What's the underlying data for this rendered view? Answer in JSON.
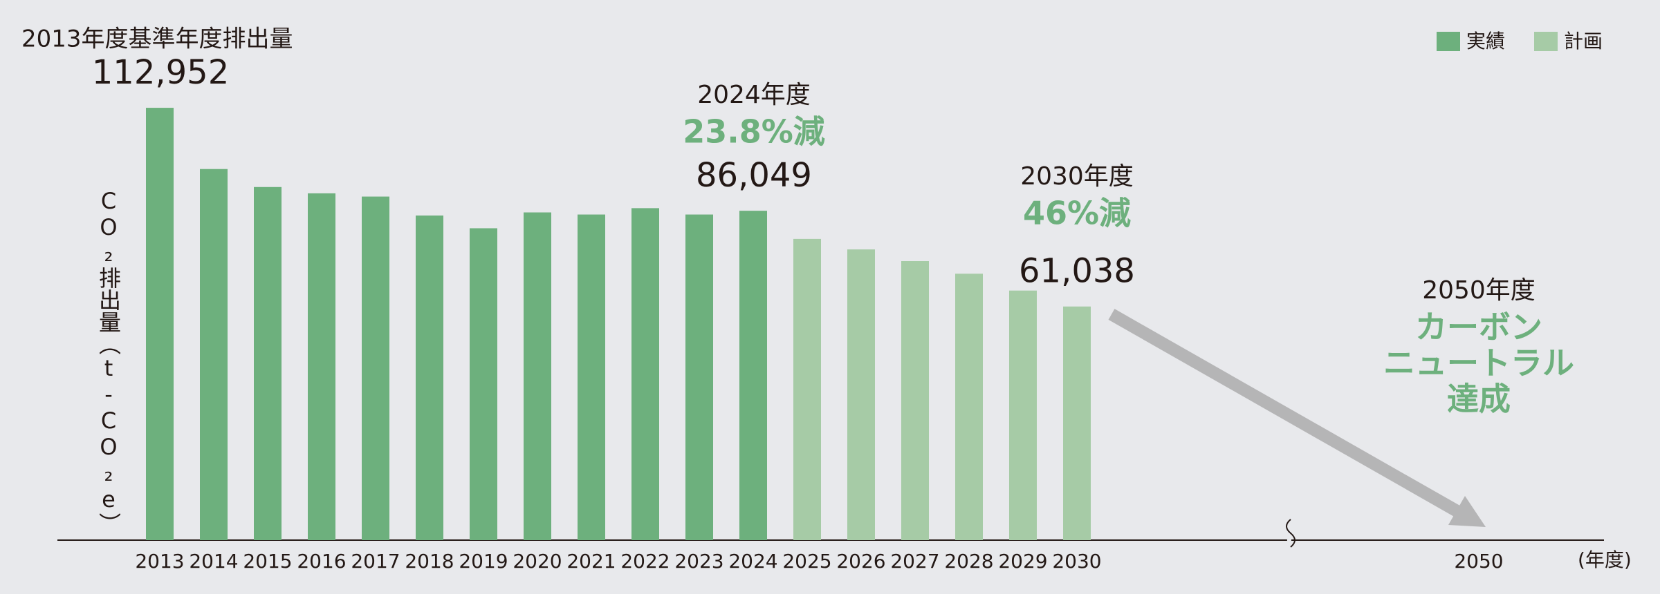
{
  "chart_data": {
    "type": "bar",
    "title": "2013年度基準年度排出量",
    "y_label": "CO₂排出量（t-CO₂e）",
    "x_label": "(年度)",
    "categories": [
      "2013",
      "2014",
      "2015",
      "2016",
      "2017",
      "2018",
      "2019",
      "2020",
      "2021",
      "2022",
      "2023",
      "2024",
      "2025",
      "2026",
      "2027",
      "2028",
      "2029",
      "2030",
      "2050"
    ],
    "series": [
      {
        "name": "実績",
        "color": "#6db07d",
        "values": [
          112952,
          96950,
          92250,
          90600,
          89760,
          84800,
          81480,
          85620,
          85070,
          86730,
          85070,
          86049,
          null,
          null,
          null,
          null,
          null,
          null,
          null
        ],
        "value_labels": [
          "112,952",
          null,
          null,
          null,
          null,
          null,
          null,
          null,
          null,
          null,
          null,
          "86,049",
          null,
          null,
          null,
          null,
          null,
          null,
          null
        ]
      },
      {
        "name": "計画",
        "color": "#a6cba6",
        "values": [
          null,
          null,
          null,
          null,
          null,
          null,
          null,
          null,
          null,
          null,
          null,
          null,
          78700,
          75950,
          72900,
          69600,
          65200,
          61038,
          null
        ],
        "value_labels": [
          null,
          null,
          null,
          null,
          null,
          null,
          null,
          null,
          null,
          null,
          null,
          null,
          null,
          null,
          null,
          null,
          null,
          "61,038",
          null
        ]
      }
    ],
    "ylim": [
      0,
      120000
    ],
    "legend": "top-right",
    "annotations": [
      [
        "2024年度",
        "23.8%減"
      ],
      [
        "2030年度",
        "46%減"
      ],
      [
        "2050年度",
        "カーボン",
        "ニュートラル",
        "達成"
      ]
    ]
  }
}
